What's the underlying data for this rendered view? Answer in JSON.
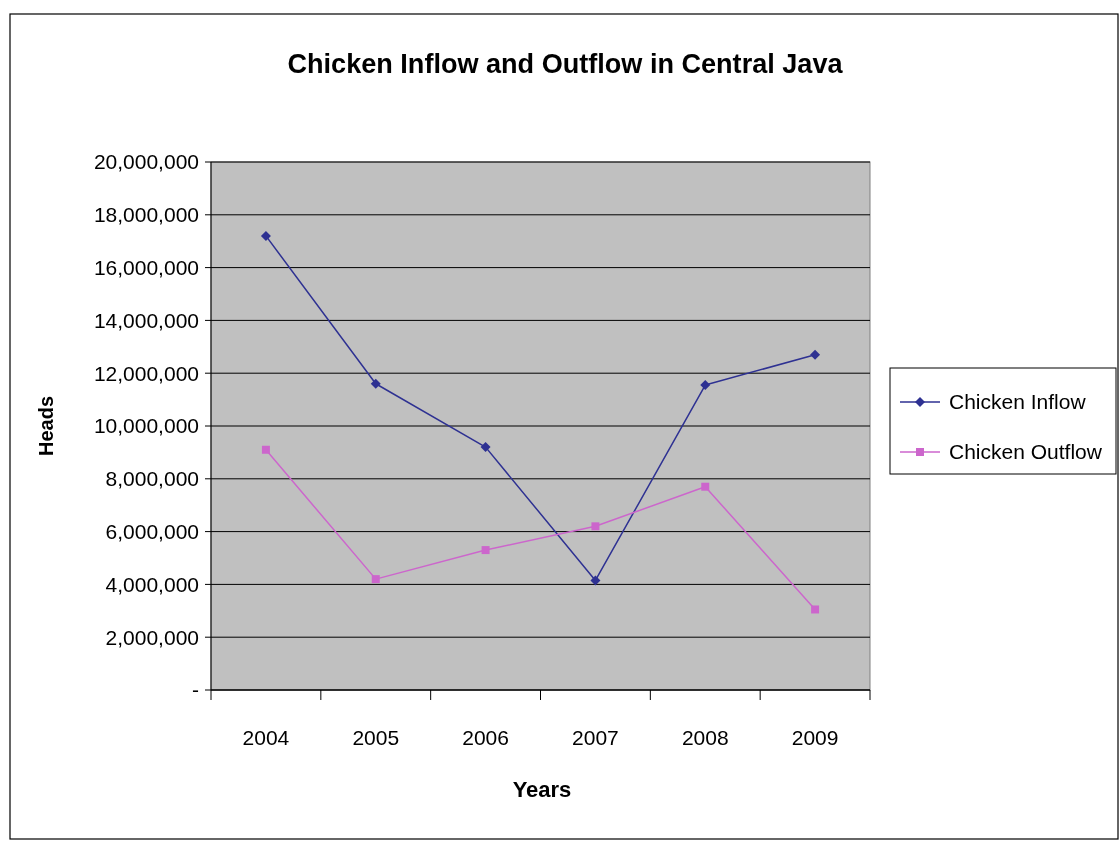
{
  "chart_data": {
    "type": "line",
    "title": "Chicken Inflow and Outflow in Central Java",
    "xlabel": "Years",
    "ylabel": "Heads",
    "categories": [
      "2004",
      "2005",
      "2006",
      "2007",
      "2008",
      "2009"
    ],
    "series": [
      {
        "name": "Chicken Inflow",
        "color": "#2e3192",
        "marker": "diamond",
        "values": [
          17200000,
          11600000,
          9200000,
          4150000,
          11550000,
          12700000
        ]
      },
      {
        "name": "Chicken Outflow",
        "color": "#cc66cc",
        "marker": "square",
        "values": [
          9100000,
          4200000,
          5300000,
          6200000,
          7700000,
          3050000
        ]
      }
    ],
    "ylim": [
      0,
      20000000
    ],
    "yticks": [
      {
        "value": 0,
        "label": "-"
      },
      {
        "value": 2000000,
        "label": "2,000,000"
      },
      {
        "value": 4000000,
        "label": "4,000,000"
      },
      {
        "value": 6000000,
        "label": "6,000,000"
      },
      {
        "value": 8000000,
        "label": "8,000,000"
      },
      {
        "value": 10000000,
        "label": "10,000,000"
      },
      {
        "value": 12000000,
        "label": "12,000,000"
      },
      {
        "value": 14000000,
        "label": "14,000,000"
      },
      {
        "value": 16000000,
        "label": "16,000,000"
      },
      {
        "value": 18000000,
        "label": "18,000,000"
      },
      {
        "value": 20000000,
        "label": "20,000,000"
      }
    ],
    "grid": "y",
    "legend": "right"
  }
}
